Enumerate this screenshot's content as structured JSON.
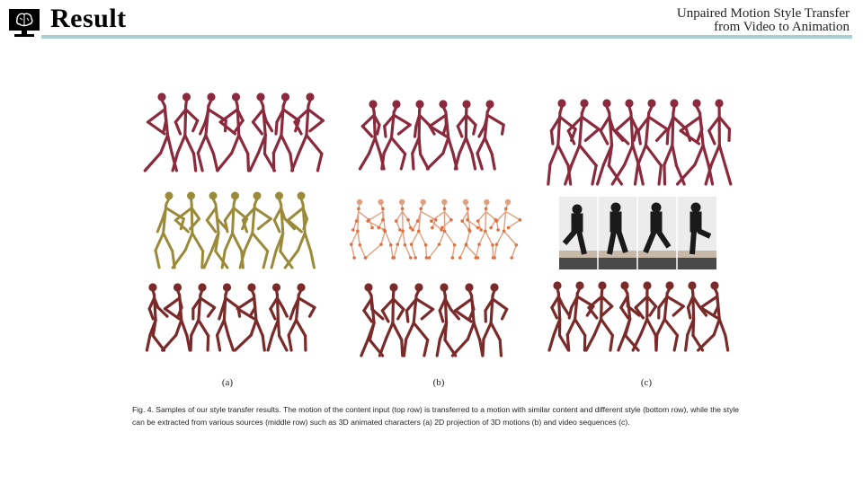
{
  "header": {
    "title": "Result",
    "subtitle_line1": "Unpaired Motion Style Transfer",
    "subtitle_line2": "from Video to Animation"
  },
  "figure": {
    "labels": [
      "(a)",
      "(b)",
      "(c)"
    ],
    "caption": "Fig. 4.  Samples of our style transfer results. The motion of the content input (top row) is transferred to a motion with similar content and different style (bottom row), while the style can be extracted from various sources (middle row) such as 3D animated characters (a) 2D projection of 3D motions (b) and video sequences (c)."
  },
  "colors": {
    "rule": "#a8d0d1",
    "content_figure": "#8a2a3c",
    "yellow_figure": "#9a8a3a",
    "skeleton_figure": "#e0a080",
    "result_figure": "#7a2a28"
  }
}
